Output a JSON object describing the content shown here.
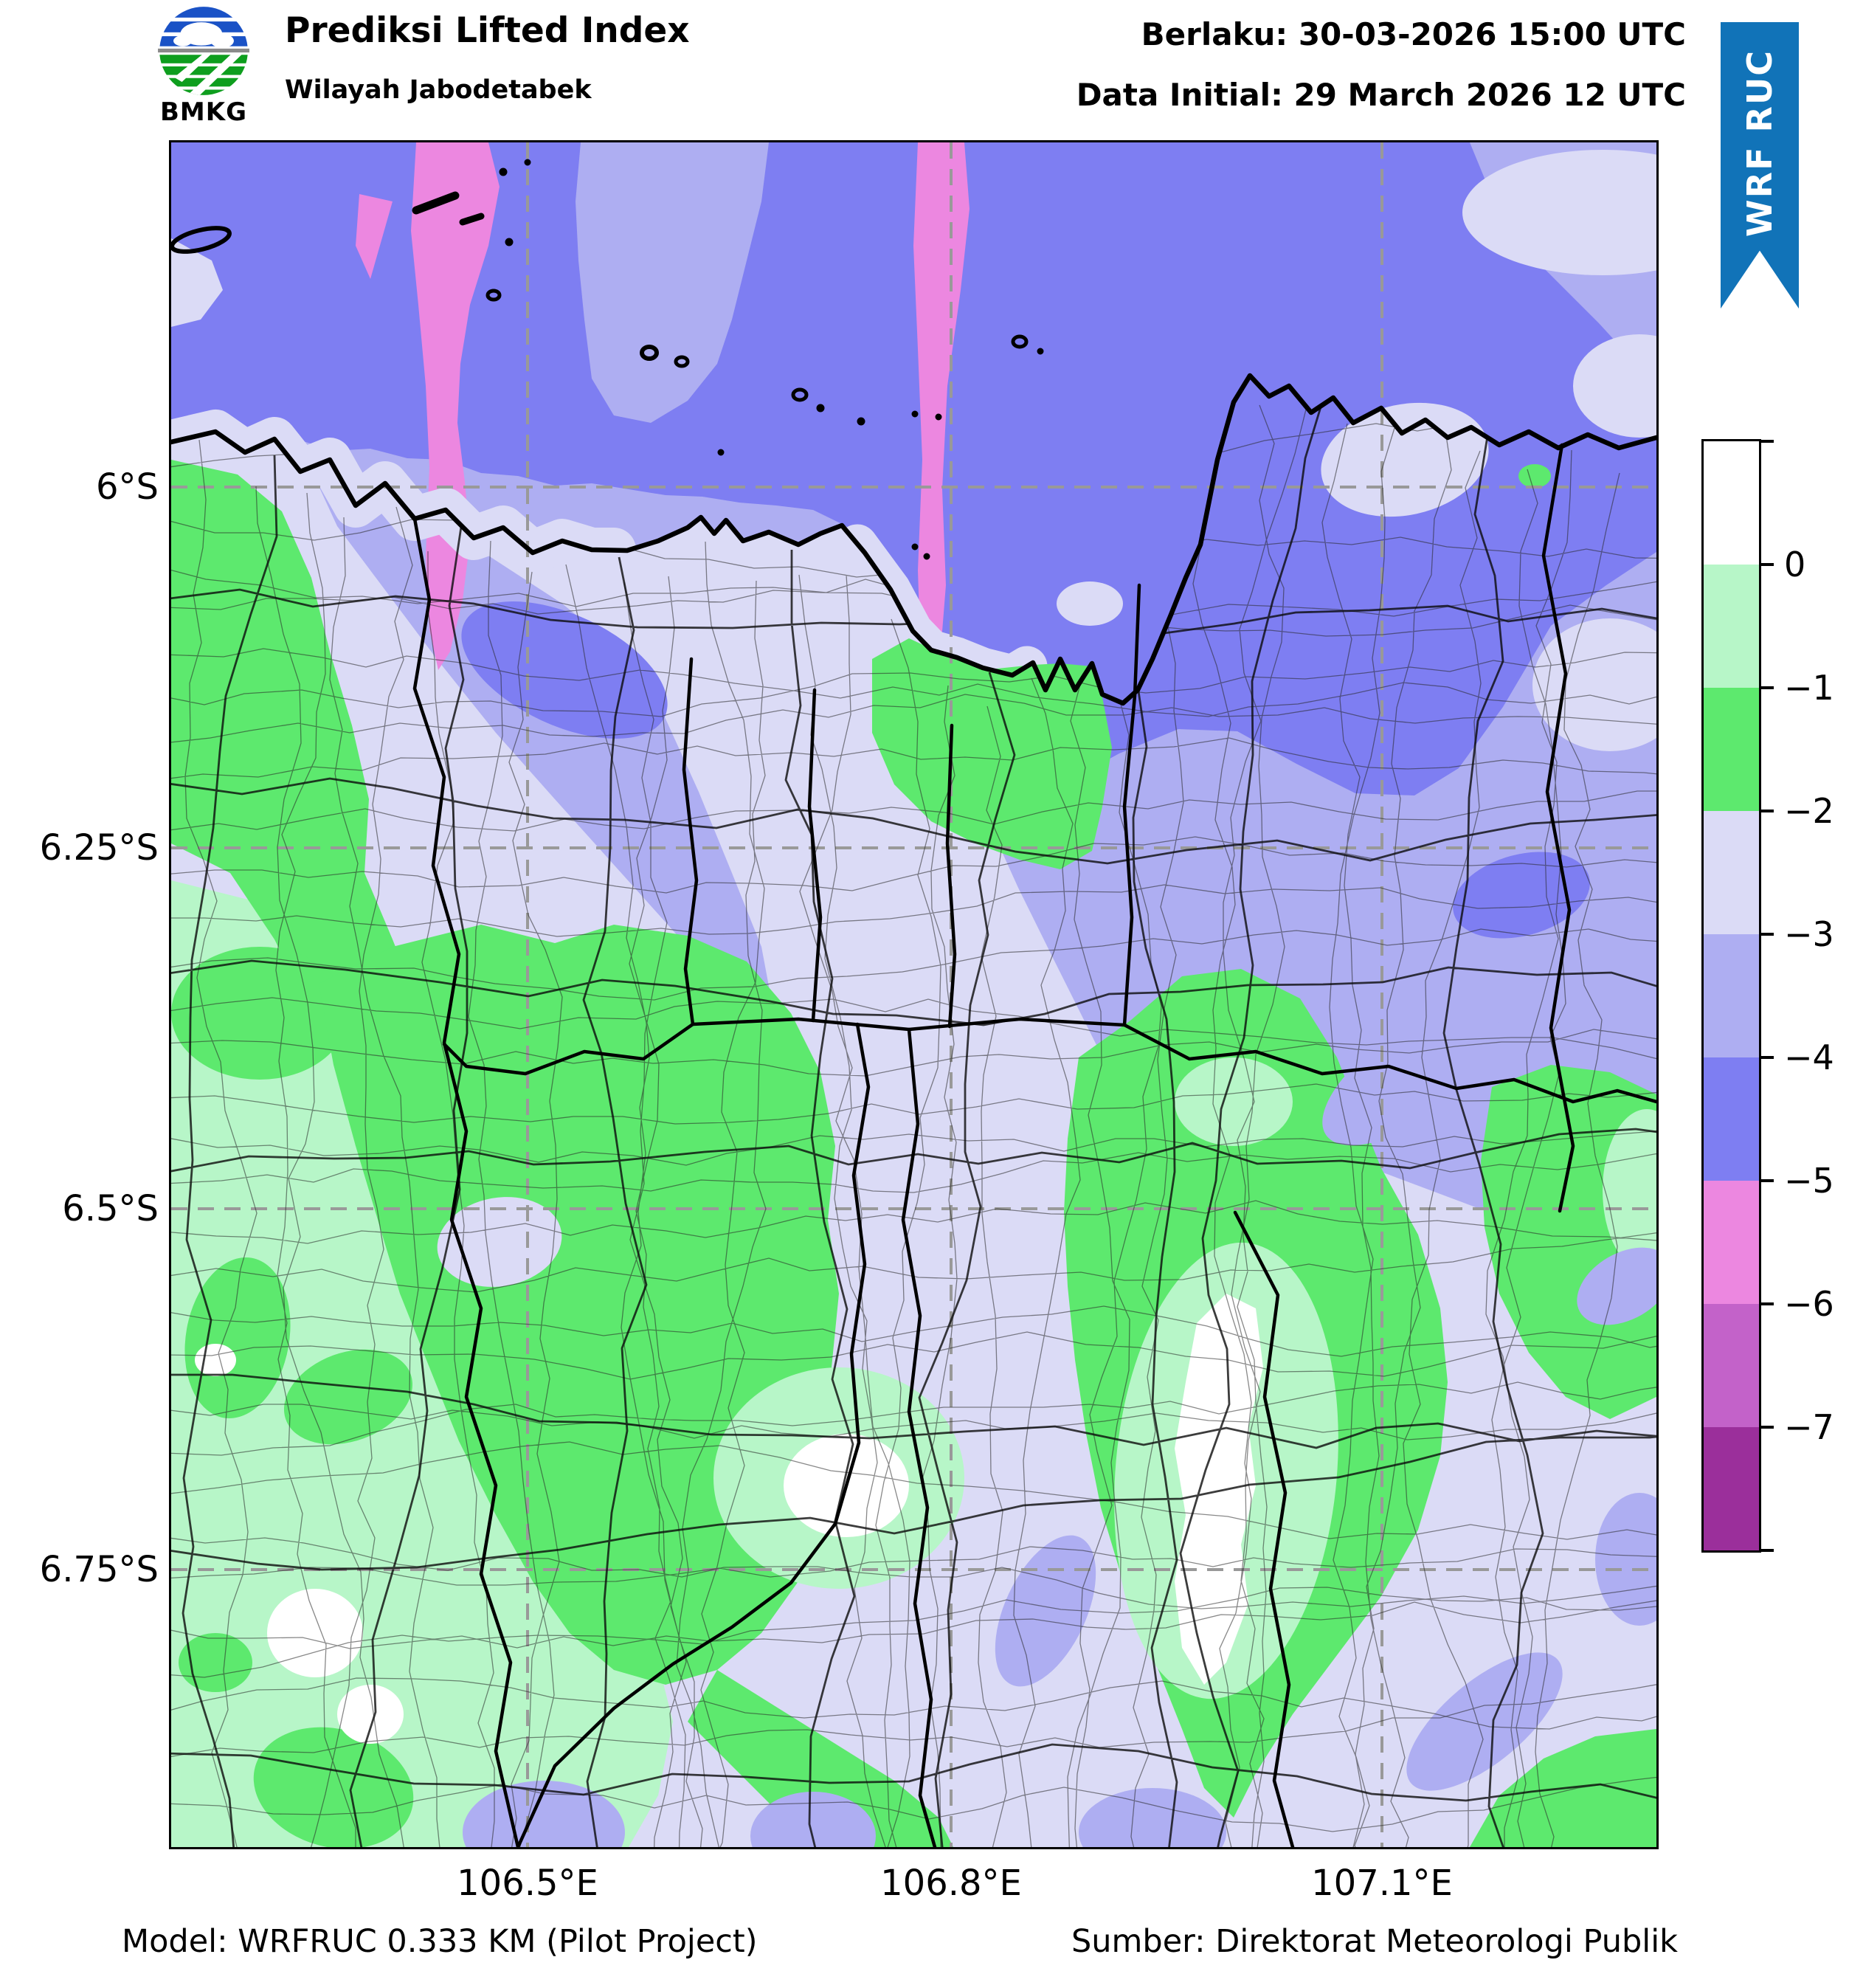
{
  "header": {
    "logo_text": "BMKG",
    "title": "Prediksi Lifted Index",
    "subtitle": "Wilayah Jabodetabek",
    "valid_text": "Berlaku: 30-03-2026 15:00 UTC",
    "initial_text": "Data Initial: 29 March 2026 12 UTC",
    "ribbon_text": "WRF RUC"
  },
  "map": {
    "x_tick_labels": [
      "106.5°E",
      "106.8°E",
      "107.1°E"
    ],
    "y_tick_labels": [
      "6°S",
      "6.25°S",
      "6.5°S",
      "6.75°S"
    ]
  },
  "colorbar": {
    "tick_labels": [
      "0",
      "−1",
      "−2",
      "−3",
      "−4",
      "−5",
      "−6",
      "−7"
    ],
    "segment_colors_top_to_bottom": [
      "#ffffff",
      "#b7f6c8",
      "#5de96e",
      "#dbdbf6",
      "#aeaef2",
      "#7e7ef2",
      "#ec87e0",
      "#c362c9",
      "#9b2f9b"
    ]
  },
  "footer": {
    "model_text": "Model: WRFRUC 0.333 KM (Pilot Project)",
    "source_text": "Sumber: Direktorat Meteorologi Publik"
  },
  "palette": {
    "ribbon_blue": "#1173b8",
    "grid_gray": "#999999",
    "li_above_0": "#ffffff",
    "li_0_to_-1": "#b7f6c8",
    "li_-1_to_-2": "#5de96e",
    "li_-2_to_-3": "#dbdbf6",
    "li_-3_to_-4": "#aeaef2",
    "li_-4_to_-5": "#7e7ef2",
    "li_-5_to_-6": "#ec87e0",
    "li_-6_to_-7": "#c362c9",
    "li_below_-7": "#9b2f9b"
  }
}
